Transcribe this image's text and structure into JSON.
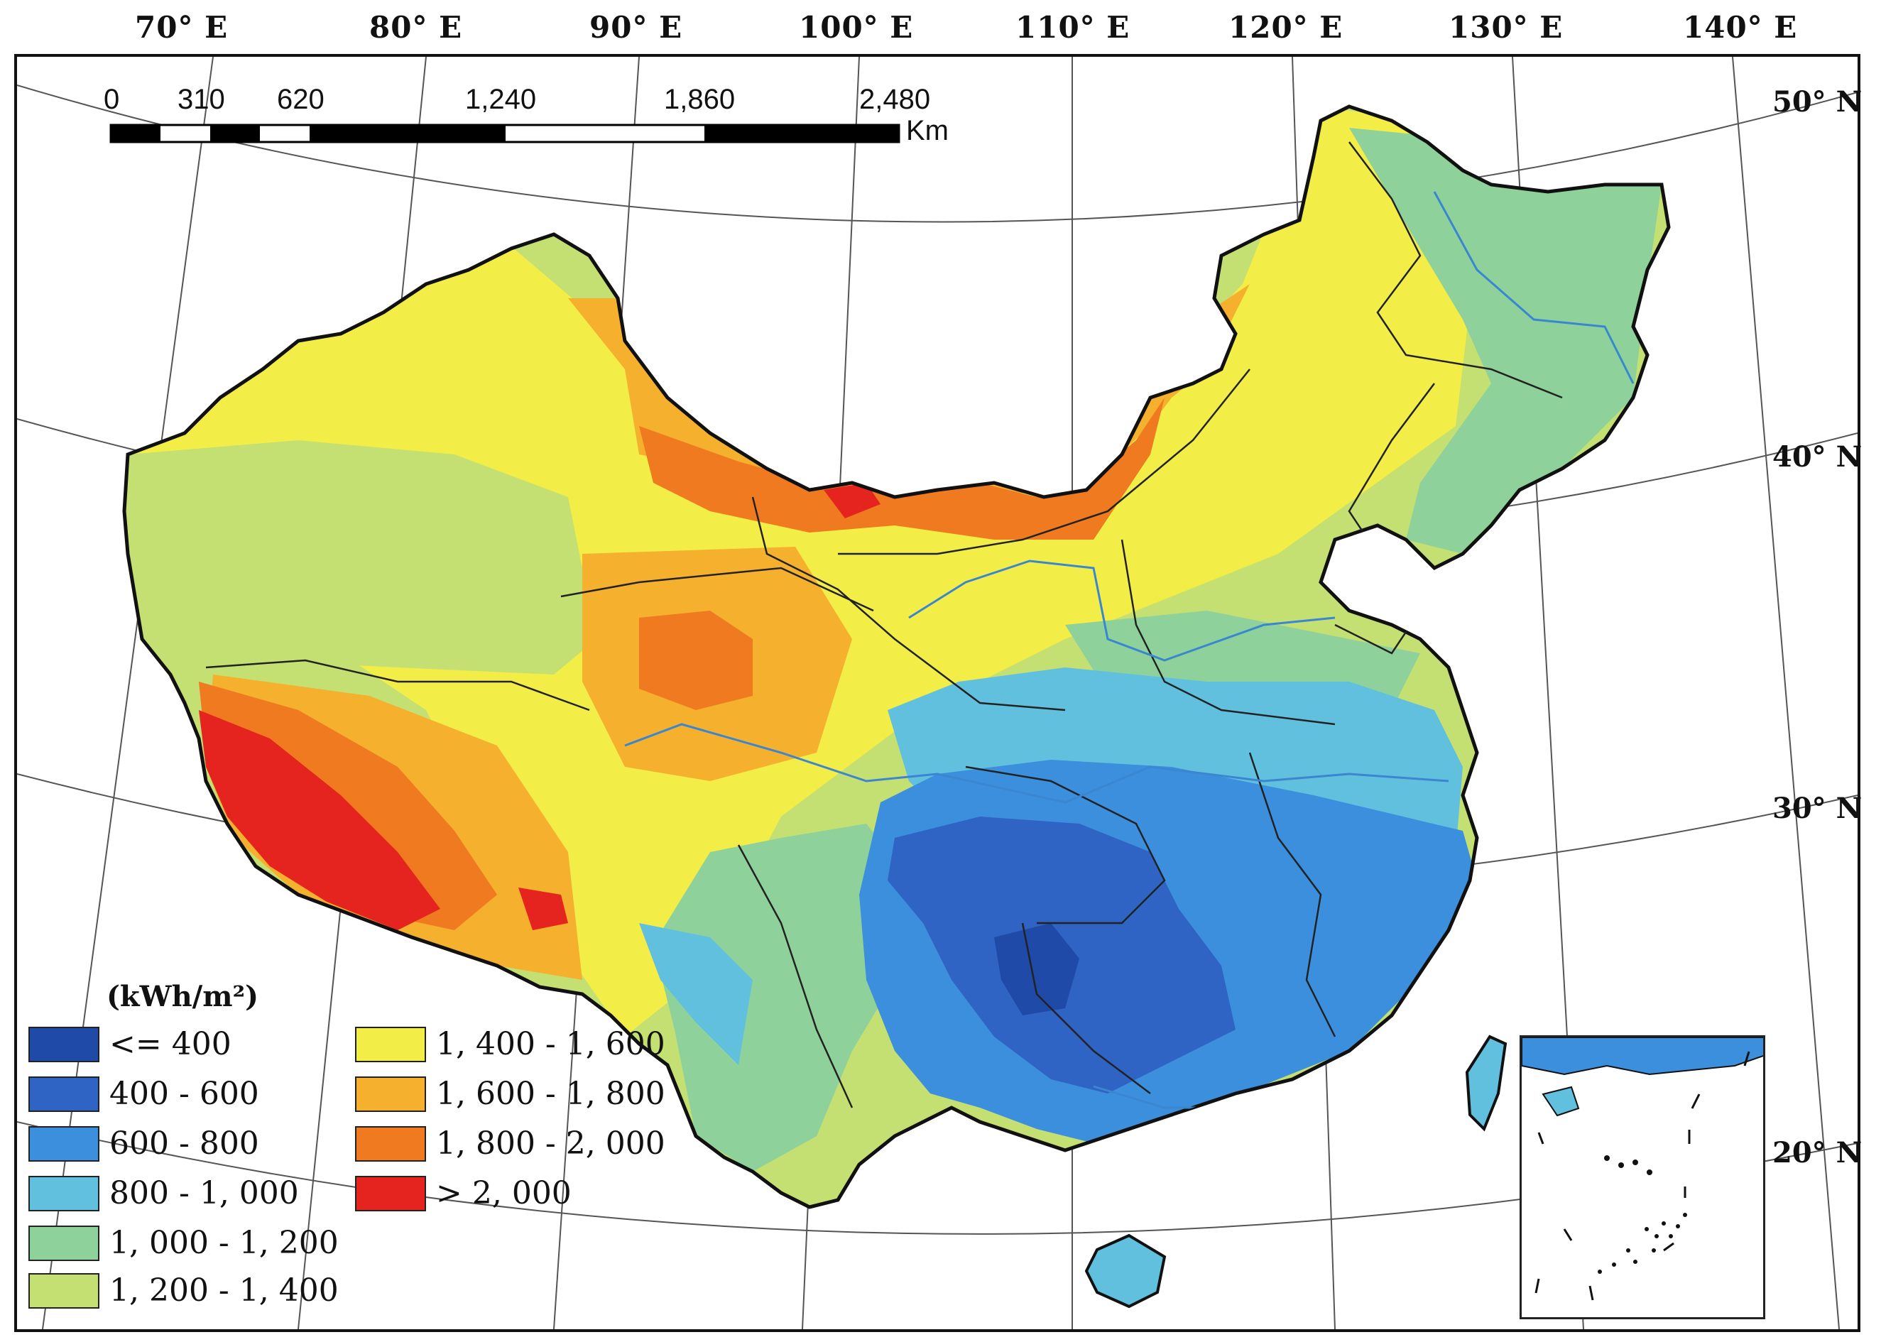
{
  "longitude_labels": [
    "70° E",
    "80° E",
    "90° E",
    "100° E",
    "110° E",
    "120° E",
    "130° E",
    "140° E"
  ],
  "latitude_labels": [
    "50° N",
    "40° N",
    "30° N",
    "20° N"
  ],
  "scale_bar": {
    "ticks": [
      "0",
      "310",
      "620",
      "1,240",
      "1,860",
      "2,480"
    ],
    "unit": "Km"
  },
  "legend": {
    "title": "(kWh/m²)",
    "items": [
      {
        "label": "<= 400",
        "color": "#1f4aa8"
      },
      {
        "label": "400 - 600",
        "color": "#2f63c4"
      },
      {
        "label": "600 - 800",
        "color": "#3b8fdc"
      },
      {
        "label": "800 - 1, 000",
        "color": "#62c0df"
      },
      {
        "label": "1, 000 - 1, 200",
        "color": "#8fd19a"
      },
      {
        "label": "1, 200 - 1, 400",
        "color": "#c4df72"
      },
      {
        "label": "1, 400 - 1, 600",
        "color": "#f2ee47"
      },
      {
        "label": "1, 600 - 1, 800",
        "color": "#f5b02e"
      },
      {
        "label": "1, 800 - 2, 000",
        "color": "#ef7a1f"
      },
      {
        "label": "> 2, 000",
        "color": "#e52420"
      }
    ]
  }
}
